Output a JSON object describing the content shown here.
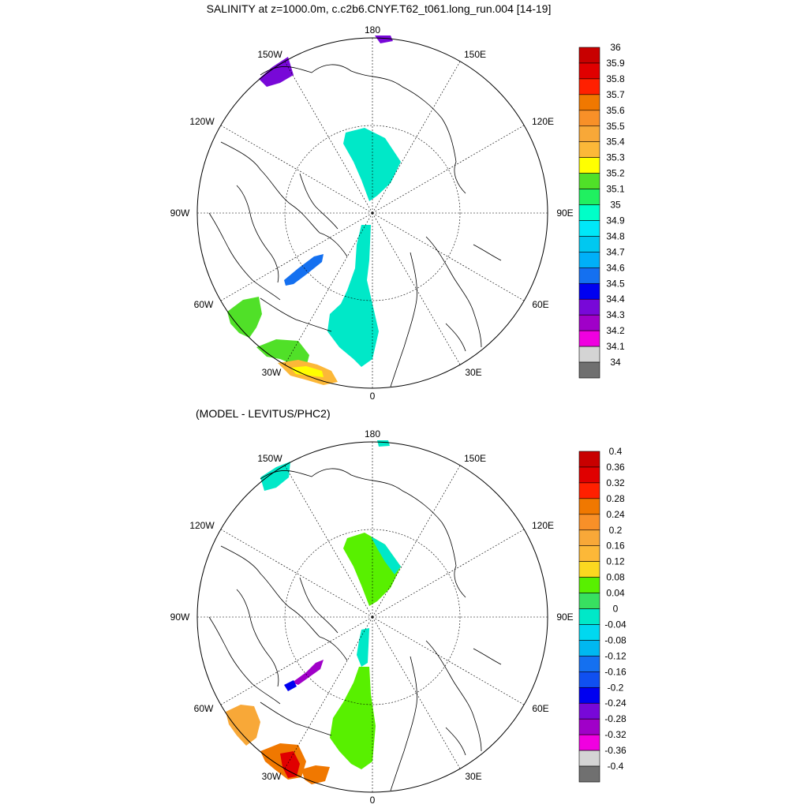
{
  "top_panel": {
    "title": "SALINITY at z=1000.0m, c.c2b6.CNYF.T62_t061.long_run.004 [14-19]",
    "lon_labels": {
      "n": "180",
      "ne": "150E",
      "nw": "150W",
      "e_upper": "120E",
      "w_upper": "120W",
      "e": "90E",
      "w": "90W",
      "e_lower": "60E",
      "w_lower": "60W",
      "se": "30E",
      "sw": "30W",
      "s": "0"
    },
    "colorbar": {
      "levels": [
        "36",
        "35.9",
        "35.8",
        "35.7",
        "35.6",
        "35.5",
        "35.4",
        "35.3",
        "35.2",
        "35.1",
        "35",
        "34.9",
        "34.8",
        "34.7",
        "34.6",
        "34.5",
        "34.4",
        "34.3",
        "34.2",
        "34.1",
        "34"
      ],
      "colors": [
        "#c80000",
        "#e00000",
        "#ff2000",
        "#f07800",
        "#f89028",
        "#f8a838",
        "#fcb838",
        "#ffff00",
        "#50e028",
        "#20f060",
        "#00ffc8",
        "#00e8f8",
        "#00c8f0",
        "#00b0f8",
        "#1470f0",
        "#0000f0",
        "#7808d8",
        "#a000c8",
        "#f000e0",
        "#d4d4d4",
        "#707070"
      ]
    }
  },
  "bottom_panel": {
    "title": "(MODEL - LEVITUS/PHC2)",
    "lon_labels": {
      "n": "180",
      "ne": "150E",
      "nw": "150W",
      "e_upper": "120E",
      "w_upper": "120W",
      "e": "90E",
      "w": "90W",
      "e_lower": "60E",
      "w_lower": "60W",
      "se": "30E",
      "sw": "30W",
      "s": "0"
    },
    "colorbar": {
      "levels": [
        "0.4",
        "0.36",
        "0.32",
        "0.28",
        "0.24",
        "0.2",
        "0.16",
        "0.12",
        "0.08",
        "0.04",
        "0",
        "-0.04",
        "-0.08",
        "-0.12",
        "-0.16",
        "-0.2",
        "-0.24",
        "-0.28",
        "-0.32",
        "-0.36",
        "-0.4"
      ],
      "colors": [
        "#c80000",
        "#e00000",
        "#ff2000",
        "#f07800",
        "#f89028",
        "#f8a838",
        "#fcb838",
        "#fcd820",
        "#58f000",
        "#38e060",
        "#00e8c8",
        "#00d8f0",
        "#00b8f0",
        "#1470f0",
        "#1050f0",
        "#0000f0",
        "#7808d8",
        "#a000c8",
        "#f000e0",
        "#d4d4d4",
        "#707070"
      ]
    }
  }
}
